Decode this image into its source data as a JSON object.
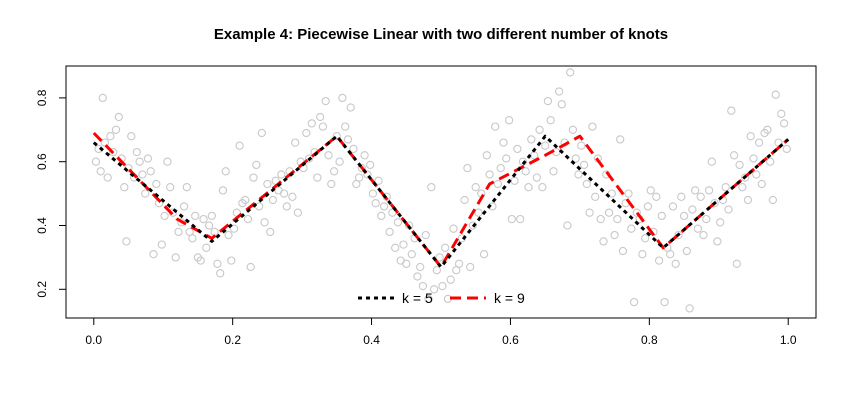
{
  "chart_data": {
    "type": "scatter",
    "title": "Example 4: Piecewise Linear with two different number of knots",
    "xlabel": "",
    "ylabel": "",
    "xlim": [
      -0.04,
      1.04
    ],
    "ylim": [
      0.11,
      0.9
    ],
    "xticks": [
      0.0,
      0.2,
      0.4,
      0.6,
      0.8,
      1.0
    ],
    "xtick_labels": [
      "0.0",
      "0.2",
      "0.4",
      "0.6",
      "0.8",
      "1.0"
    ],
    "yticks": [
      0.2,
      0.4,
      0.6,
      0.8
    ],
    "ytick_labels": [
      "0.2",
      "0.4",
      "0.6",
      "0.8"
    ],
    "grid": false,
    "legend_position": "bottom-center",
    "points_color": "#c8c8c8",
    "series": [
      {
        "name": "k = 5",
        "color": "#000000",
        "style": "dotted",
        "x": [
          0.0,
          0.17,
          0.35,
          0.5,
          0.65,
          0.82,
          1.0
        ],
        "y": [
          0.66,
          0.35,
          0.68,
          0.27,
          0.68,
          0.33,
          0.67
        ]
      },
      {
        "name": "k = 9",
        "color": "#ff0000",
        "style": "dashed",
        "x": [
          0.0,
          0.12,
          0.17,
          0.35,
          0.5,
          0.57,
          0.65,
          0.7,
          0.82,
          1.0
        ],
        "y": [
          0.69,
          0.42,
          0.36,
          0.68,
          0.27,
          0.53,
          0.62,
          0.68,
          0.33,
          0.67
        ]
      }
    ],
    "points": [
      [
        0.003,
        0.6
      ],
      [
        0.007,
        0.64
      ],
      [
        0.01,
        0.57
      ],
      [
        0.013,
        0.8
      ],
      [
        0.016,
        0.66
      ],
      [
        0.02,
        0.55
      ],
      [
        0.024,
        0.68
      ],
      [
        0.028,
        0.63
      ],
      [
        0.032,
        0.7
      ],
      [
        0.036,
        0.74
      ],
      [
        0.04,
        0.61
      ],
      [
        0.044,
        0.52
      ],
      [
        0.047,
        0.35
      ],
      [
        0.05,
        0.58
      ],
      [
        0.054,
        0.68
      ],
      [
        0.058,
        0.55
      ],
      [
        0.062,
        0.63
      ],
      [
        0.066,
        0.6
      ],
      [
        0.07,
        0.56
      ],
      [
        0.074,
        0.5
      ],
      [
        0.078,
        0.61
      ],
      [
        0.082,
        0.57
      ],
      [
        0.086,
        0.31
      ],
      [
        0.09,
        0.53
      ],
      [
        0.094,
        0.47
      ],
      [
        0.098,
        0.34
      ],
      [
        0.102,
        0.43
      ],
      [
        0.106,
        0.6
      ],
      [
        0.11,
        0.52
      ],
      [
        0.114,
        0.44
      ],
      [
        0.118,
        0.3
      ],
      [
        0.122,
        0.38
      ],
      [
        0.126,
        0.41
      ],
      [
        0.13,
        0.46
      ],
      [
        0.134,
        0.52
      ],
      [
        0.138,
        0.38
      ],
      [
        0.142,
        0.36
      ],
      [
        0.146,
        0.43
      ],
      [
        0.15,
        0.3
      ],
      [
        0.154,
        0.29
      ],
      [
        0.158,
        0.42
      ],
      [
        0.162,
        0.33
      ],
      [
        0.166,
        0.4
      ],
      [
        0.17,
        0.43
      ],
      [
        0.174,
        0.38
      ],
      [
        0.178,
        0.28
      ],
      [
        0.182,
        0.25
      ],
      [
        0.186,
        0.51
      ],
      [
        0.19,
        0.57
      ],
      [
        0.194,
        0.37
      ],
      [
        0.198,
        0.29
      ],
      [
        0.202,
        0.39
      ],
      [
        0.206,
        0.44
      ],
      [
        0.21,
        0.65
      ],
      [
        0.214,
        0.47
      ],
      [
        0.218,
        0.48
      ],
      [
        0.222,
        0.42
      ],
      [
        0.226,
        0.27
      ],
      [
        0.23,
        0.55
      ],
      [
        0.234,
        0.59
      ],
      [
        0.238,
        0.46
      ],
      [
        0.242,
        0.69
      ],
      [
        0.246,
        0.41
      ],
      [
        0.25,
        0.53
      ],
      [
        0.254,
        0.38
      ],
      [
        0.258,
        0.48
      ],
      [
        0.262,
        0.54
      ],
      [
        0.266,
        0.51
      ],
      [
        0.27,
        0.56
      ],
      [
        0.274,
        0.5
      ],
      [
        0.278,
        0.46
      ],
      [
        0.282,
        0.57
      ],
      [
        0.286,
        0.49
      ],
      [
        0.29,
        0.66
      ],
      [
        0.294,
        0.44
      ],
      [
        0.298,
        0.6
      ],
      [
        0.302,
        0.58
      ],
      [
        0.306,
        0.69
      ],
      [
        0.31,
        0.61
      ],
      [
        0.314,
        0.72
      ],
      [
        0.318,
        0.63
      ],
      [
        0.322,
        0.55
      ],
      [
        0.326,
        0.74
      ],
      [
        0.33,
        0.71
      ],
      [
        0.334,
        0.79
      ],
      [
        0.338,
        0.62
      ],
      [
        0.342,
        0.53
      ],
      [
        0.346,
        0.57
      ],
      [
        0.35,
        0.68
      ],
      [
        0.354,
        0.6
      ],
      [
        0.358,
        0.8
      ],
      [
        0.362,
        0.71
      ],
      [
        0.366,
        0.67
      ],
      [
        0.37,
        0.77
      ],
      [
        0.374,
        0.64
      ],
      [
        0.378,
        0.53
      ],
      [
        0.382,
        0.55
      ],
      [
        0.386,
        0.58
      ],
      [
        0.39,
        0.62
      ],
      [
        0.394,
        0.56
      ],
      [
        0.398,
        0.59
      ],
      [
        0.402,
        0.5
      ],
      [
        0.406,
        0.47
      ],
      [
        0.41,
        0.54
      ],
      [
        0.414,
        0.43
      ],
      [
        0.418,
        0.46
      ],
      [
        0.422,
        0.49
      ],
      [
        0.426,
        0.38
      ],
      [
        0.43,
        0.44
      ],
      [
        0.434,
        0.33
      ],
      [
        0.438,
        0.41
      ],
      [
        0.442,
        0.29
      ],
      [
        0.446,
        0.34
      ],
      [
        0.45,
        0.28
      ],
      [
        0.454,
        0.4
      ],
      [
        0.458,
        0.31
      ],
      [
        0.462,
        0.36
      ],
      [
        0.466,
        0.24
      ],
      [
        0.47,
        0.27
      ],
      [
        0.474,
        0.21
      ],
      [
        0.478,
        0.37
      ],
      [
        0.482,
        0.17
      ],
      [
        0.486,
        0.52
      ],
      [
        0.49,
        0.2
      ],
      [
        0.494,
        0.26
      ],
      [
        0.498,
        0.3
      ],
      [
        0.502,
        0.21
      ],
      [
        0.506,
        0.33
      ],
      [
        0.51,
        0.17
      ],
      [
        0.514,
        0.23
      ],
      [
        0.518,
        0.39
      ],
      [
        0.522,
        0.26
      ],
      [
        0.526,
        0.28
      ],
      [
        0.53,
        0.36
      ],
      [
        0.534,
        0.48
      ],
      [
        0.538,
        0.58
      ],
      [
        0.542,
        0.27
      ],
      [
        0.546,
        0.4
      ],
      [
        0.55,
        0.52
      ],
      [
        0.554,
        0.44
      ],
      [
        0.558,
        0.5
      ],
      [
        0.562,
        0.31
      ],
      [
        0.566,
        0.62
      ],
      [
        0.57,
        0.56
      ],
      [
        0.574,
        0.46
      ],
      [
        0.578,
        0.71
      ],
      [
        0.582,
        0.53
      ],
      [
        0.586,
        0.58
      ],
      [
        0.59,
        0.66
      ],
      [
        0.594,
        0.61
      ],
      [
        0.598,
        0.73
      ],
      [
        0.602,
        0.42
      ],
      [
        0.606,
        0.54
      ],
      [
        0.61,
        0.64
      ],
      [
        0.614,
        0.42
      ],
      [
        0.618,
        0.6
      ],
      [
        0.622,
        0.57
      ],
      [
        0.626,
        0.52
      ],
      [
        0.63,
        0.67
      ],
      [
        0.634,
        0.62
      ],
      [
        0.638,
        0.55
      ],
      [
        0.642,
        0.7
      ],
      [
        0.646,
        0.52
      ],
      [
        0.65,
        0.65
      ],
      [
        0.654,
        0.79
      ],
      [
        0.658,
        0.73
      ],
      [
        0.662,
        0.57
      ],
      [
        0.666,
        0.63
      ],
      [
        0.67,
        0.82
      ],
      [
        0.674,
        0.78
      ],
      [
        0.678,
        0.66
      ],
      [
        0.682,
        0.4
      ],
      [
        0.686,
        0.88
      ],
      [
        0.69,
        0.7
      ],
      [
        0.694,
        0.61
      ],
      [
        0.698,
        0.56
      ],
      [
        0.702,
        0.65
      ],
      [
        0.706,
        0.59
      ],
      [
        0.71,
        0.53
      ],
      [
        0.714,
        0.44
      ],
      [
        0.718,
        0.71
      ],
      [
        0.722,
        0.49
      ],
      [
        0.726,
        0.61
      ],
      [
        0.73,
        0.42
      ],
      [
        0.734,
        0.35
      ],
      [
        0.738,
        0.56
      ],
      [
        0.742,
        0.44
      ],
      [
        0.746,
        0.5
      ],
      [
        0.75,
        0.37
      ],
      [
        0.754,
        0.42
      ],
      [
        0.758,
        0.67
      ],
      [
        0.762,
        0.32
      ],
      [
        0.766,
        0.47
      ],
      [
        0.77,
        0.5
      ],
      [
        0.774,
        0.39
      ],
      [
        0.778,
        0.16
      ],
      [
        0.782,
        0.44
      ],
      [
        0.786,
        0.42
      ],
      [
        0.79,
        0.31
      ],
      [
        0.794,
        0.36
      ],
      [
        0.798,
        0.46
      ],
      [
        0.802,
        0.51
      ],
      [
        0.806,
        0.38
      ],
      [
        0.81,
        0.49
      ],
      [
        0.814,
        0.29
      ],
      [
        0.818,
        0.43
      ],
      [
        0.822,
        0.16
      ],
      [
        0.826,
        0.33
      ],
      [
        0.83,
        0.31
      ],
      [
        0.834,
        0.46
      ],
      [
        0.838,
        0.28
      ],
      [
        0.842,
        0.37
      ],
      [
        0.846,
        0.49
      ],
      [
        0.85,
        0.43
      ],
      [
        0.854,
        0.32
      ],
      [
        0.858,
        0.14
      ],
      [
        0.862,
        0.45
      ],
      [
        0.866,
        0.51
      ],
      [
        0.87,
        0.39
      ],
      [
        0.874,
        0.49
      ],
      [
        0.878,
        0.37
      ],
      [
        0.882,
        0.42
      ],
      [
        0.886,
        0.51
      ],
      [
        0.89,
        0.6
      ],
      [
        0.894,
        0.47
      ],
      [
        0.898,
        0.35
      ],
      [
        0.902,
        0.41
      ],
      [
        0.906,
        0.48
      ],
      [
        0.91,
        0.52
      ],
      [
        0.914,
        0.45
      ],
      [
        0.918,
        0.76
      ],
      [
        0.922,
        0.62
      ],
      [
        0.926,
        0.28
      ],
      [
        0.93,
        0.59
      ],
      [
        0.934,
        0.52
      ],
      [
        0.938,
        0.55
      ],
      [
        0.942,
        0.48
      ],
      [
        0.946,
        0.68
      ],
      [
        0.95,
        0.61
      ],
      [
        0.954,
        0.56
      ],
      [
        0.958,
        0.66
      ],
      [
        0.962,
        0.53
      ],
      [
        0.966,
        0.69
      ],
      [
        0.97,
        0.7
      ],
      [
        0.974,
        0.6
      ],
      [
        0.978,
        0.48
      ],
      [
        0.982,
        0.81
      ],
      [
        0.986,
        0.66
      ],
      [
        0.99,
        0.75
      ],
      [
        0.994,
        0.72
      ],
      [
        0.998,
        0.64
      ]
    ]
  }
}
